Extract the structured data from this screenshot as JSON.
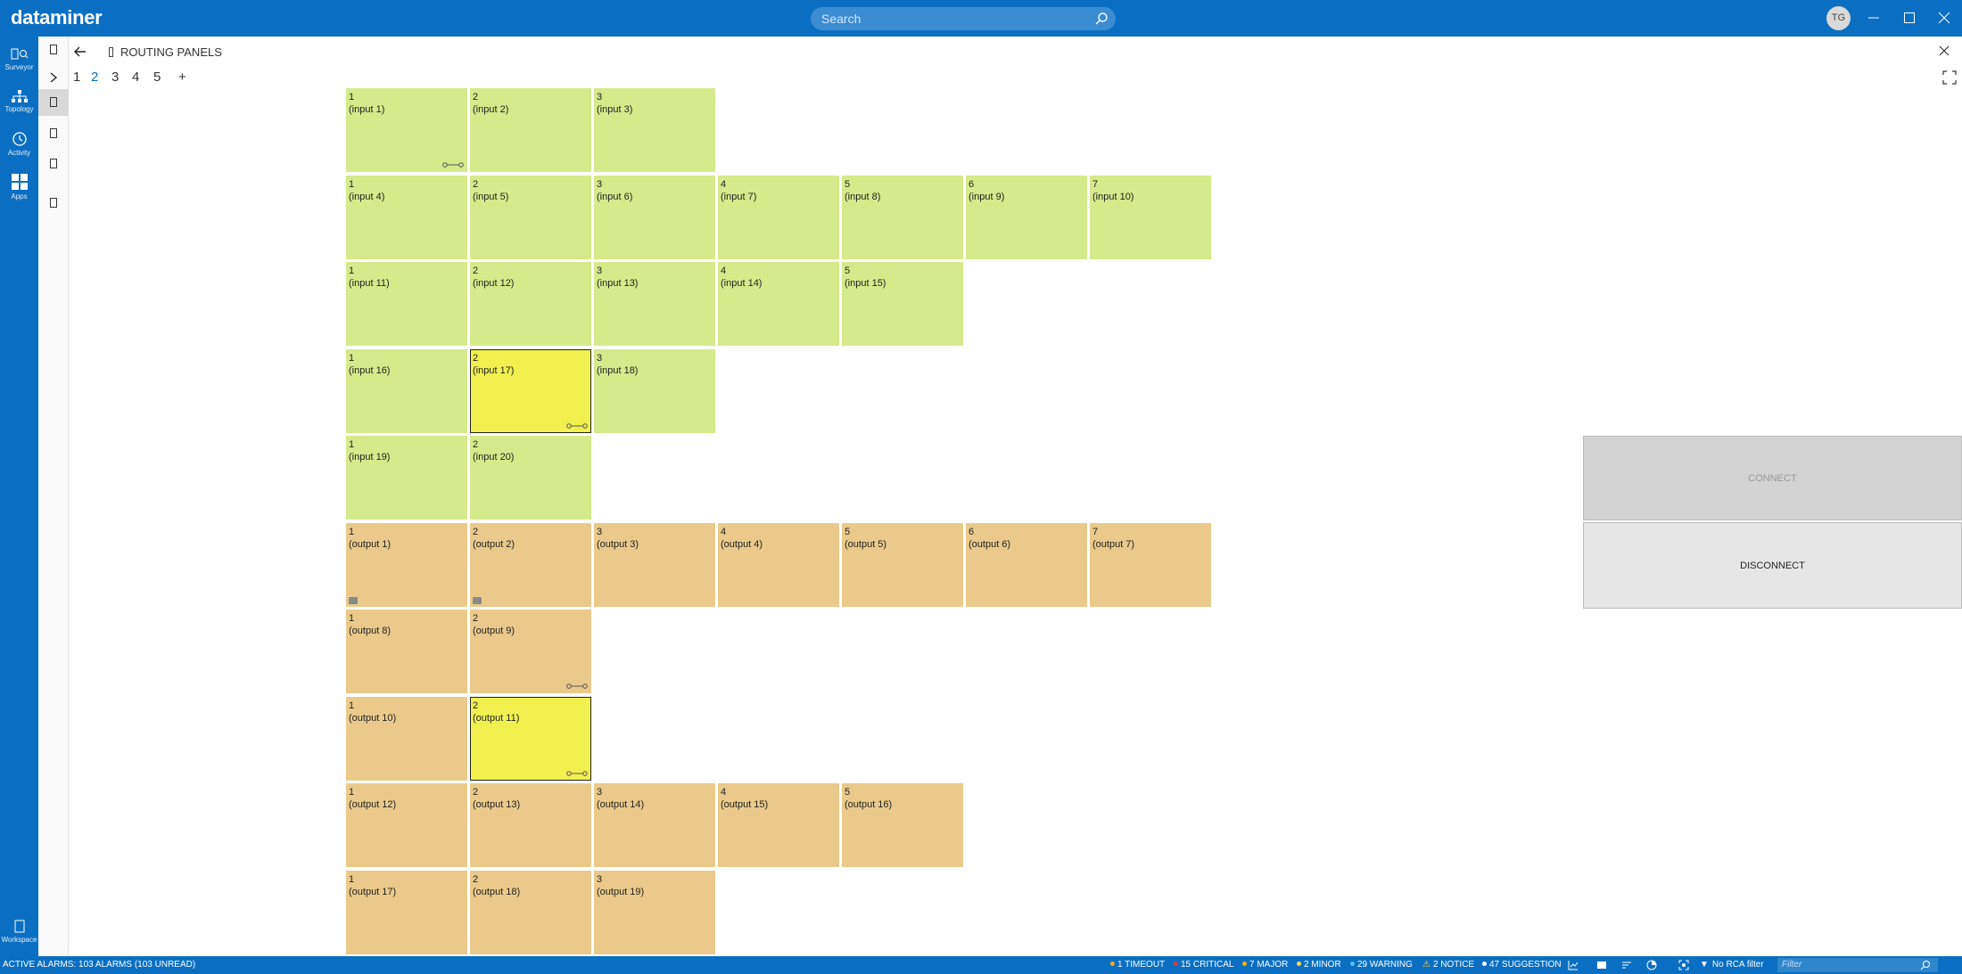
{
  "app": {
    "brand": "dataminer",
    "avatar_initials": "TG",
    "accent": "#0a6fc2"
  },
  "search": {
    "placeholder": "Search"
  },
  "rail": {
    "items": [
      {
        "label": "Surveyor",
        "icon": "surveyor-icon"
      },
      {
        "label": "Topology",
        "icon": "topology-icon"
      },
      {
        "label": "Activity",
        "icon": "activity-icon"
      },
      {
        "label": "Apps",
        "icon": "apps-icon"
      }
    ],
    "bottom": {
      "label": "Workspace",
      "icon": "workspace-icon"
    }
  },
  "panel": {
    "title": "ROUTING PANELS",
    "pages": [
      "1",
      "2",
      "3",
      "4",
      "5",
      "+"
    ],
    "active_page": "2"
  },
  "inputs": [
    [
      {
        "num": "1",
        "label": "(input 1)",
        "connected": true
      },
      {
        "num": "2",
        "label": "(input 2)"
      },
      {
        "num": "3",
        "label": "(input 3)"
      }
    ],
    [
      {
        "num": "1",
        "label": "(input 4)"
      },
      {
        "num": "2",
        "label": "(input 5)"
      },
      {
        "num": "3",
        "label": "(input 6)"
      },
      {
        "num": "4",
        "label": "(input 7)"
      },
      {
        "num": "5",
        "label": "(input 8)"
      },
      {
        "num": "6",
        "label": "(input 9)"
      },
      {
        "num": "7",
        "label": "(input 10)"
      }
    ],
    [
      {
        "num": "1",
        "label": "(input 11)"
      },
      {
        "num": "2",
        "label": "(input 12)"
      },
      {
        "num": "3",
        "label": "(input 13)"
      },
      {
        "num": "4",
        "label": "(input 14)"
      },
      {
        "num": "5",
        "label": "(input 15)"
      }
    ],
    [
      {
        "num": "1",
        "label": "(input 16)"
      },
      {
        "num": "2",
        "label": "(input 17)",
        "selected": true,
        "connected": true
      },
      {
        "num": "3",
        "label": "(input 18)"
      }
    ],
    [
      {
        "num": "1",
        "label": "(input 19)"
      },
      {
        "num": "2",
        "label": "(input 20)"
      }
    ]
  ],
  "outputs": [
    [
      {
        "num": "1",
        "label": "(output 1)",
        "locked": true
      },
      {
        "num": "2",
        "label": "(output 2)",
        "locked": true
      },
      {
        "num": "3",
        "label": "(output 3)"
      },
      {
        "num": "4",
        "label": "(output 4)"
      },
      {
        "num": "5",
        "label": "(output 5)"
      },
      {
        "num": "6",
        "label": "(output 6)"
      },
      {
        "num": "7",
        "label": "(output 7)"
      }
    ],
    [
      {
        "num": "1",
        "label": "(output 8)"
      },
      {
        "num": "2",
        "label": "(output 9)",
        "connected": true
      }
    ],
    [
      {
        "num": "1",
        "label": "(output 10)"
      },
      {
        "num": "2",
        "label": "(output 11)",
        "selected": true,
        "connected": true
      }
    ],
    [
      {
        "num": "1",
        "label": "(output 12)"
      },
      {
        "num": "2",
        "label": "(output 13)"
      },
      {
        "num": "3",
        "label": "(output 14)"
      },
      {
        "num": "4",
        "label": "(output 15)"
      },
      {
        "num": "5",
        "label": "(output 16)"
      }
    ],
    [
      {
        "num": "1",
        "label": "(output 17)"
      },
      {
        "num": "2",
        "label": "(output 18)"
      },
      {
        "num": "3",
        "label": "(output 19)"
      }
    ]
  ],
  "actions": {
    "connect": "CONNECT",
    "disconnect": "DISCONNECT"
  },
  "statusbar": {
    "alarms": "ACTIVE ALARMS: 103 ALARMS (103 UNREAD)",
    "severities": [
      {
        "text": "1 TIMEOUT",
        "color": "#f5a623"
      },
      {
        "text": "15 CRITICAL",
        "color": "#e53935"
      },
      {
        "text": "7 MAJOR",
        "color": "#ffb300"
      },
      {
        "text": "2 MINOR",
        "color": "#ffd54f"
      },
      {
        "text": "29 WARNING",
        "color": "#4fc3f7"
      },
      {
        "text": "2 NOTICE",
        "color": "#ffd54f"
      },
      {
        "text": "47 SUGGESTION",
        "color": "#ffffff"
      }
    ],
    "rca": "No RCA filter",
    "filter_placeholder": "Filter"
  }
}
